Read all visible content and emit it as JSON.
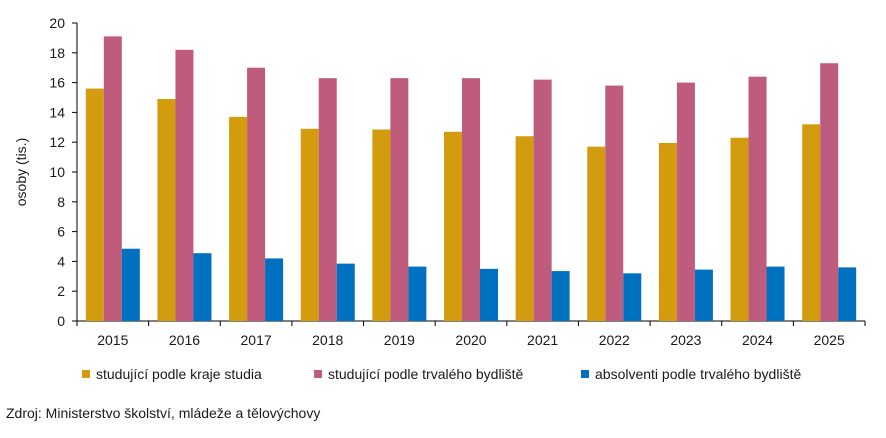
{
  "chart_data": {
    "type": "bar",
    "title": "",
    "xlabel": "",
    "ylabel": "osoby (tis.)",
    "ylim": [
      0,
      20
    ],
    "yticks": [
      0,
      2,
      4,
      6,
      8,
      10,
      12,
      14,
      16,
      18,
      20
    ],
    "grid": false,
    "legend_position": "bottom",
    "categories": [
      "2015",
      "2016",
      "2017",
      "2018",
      "2019",
      "2020",
      "2021",
      "2022",
      "2023",
      "2024",
      "2025"
    ],
    "series": [
      {
        "name": "studující podle kraje studia",
        "color": "#D39B0E",
        "values": [
          15.6,
          14.9,
          13.7,
          12.9,
          12.85,
          12.7,
          12.4,
          11.7,
          11.95,
          12.3,
          13.2
        ]
      },
      {
        "name": "studující podle trvalého bydliště",
        "color": "#BF5B7D",
        "values": [
          19.1,
          18.2,
          17.0,
          16.3,
          16.3,
          16.3,
          16.2,
          15.8,
          16.0,
          16.4,
          17.3
        ]
      },
      {
        "name": "absolventi podle trvalého bydliště",
        "color": "#0070C0",
        "values": [
          4.85,
          4.55,
          4.2,
          3.85,
          3.65,
          3.5,
          3.35,
          3.2,
          3.45,
          3.65,
          3.6
        ]
      }
    ]
  },
  "source": "Zdroj: Ministerstvo školství, mládeže a tělovýchovy"
}
